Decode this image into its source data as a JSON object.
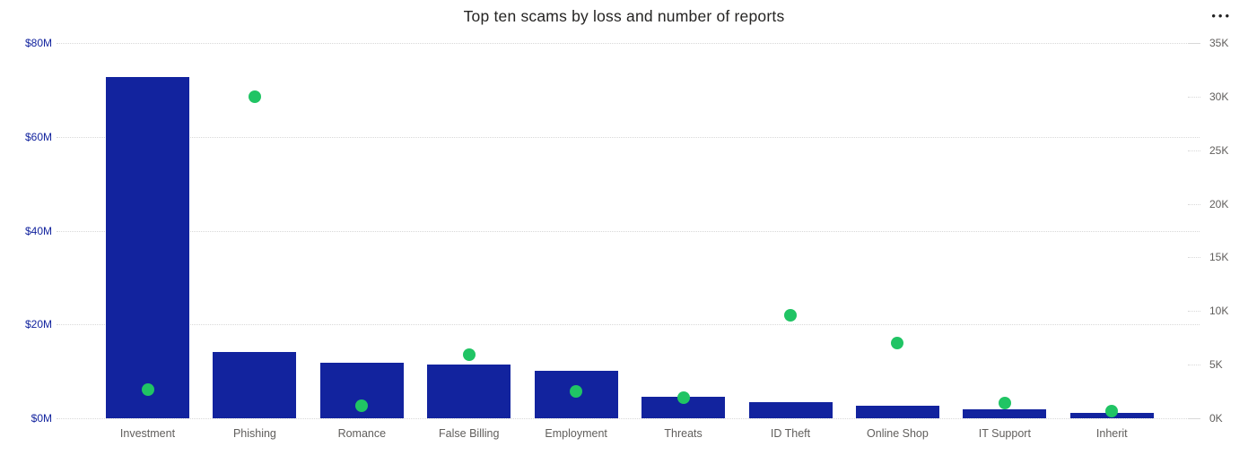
{
  "header": {
    "title": "Top ten scams by loss and number of reports",
    "more_options_glyph": "•••"
  },
  "colors": {
    "bar_blue": "#12239E",
    "dot_green": "#20C464",
    "left_axis_text": "#12239E",
    "right_axis_text": "#605E5C",
    "category_text": "#605E5C",
    "title_text": "#252423",
    "gridline": "#d8d8d8"
  },
  "chart_data": {
    "type": "bar",
    "subtype": "combo-bar-and-scatter-dual-axis",
    "title": "Top ten scams by loss and number of reports",
    "categories": [
      "Investment",
      "Phishing",
      "Romance",
      "False Billing",
      "Employment",
      "Threats",
      "ID Theft",
      "Online Shop",
      "IT Support",
      "Inherit"
    ],
    "series": [
      {
        "name": "Loss",
        "type": "bar",
        "axis": "left",
        "unit": "$M",
        "color": "#12239E",
        "values": [
          72.8,
          14.1,
          11.8,
          11.5,
          10.1,
          4.5,
          3.4,
          2.6,
          2.0,
          1.2
        ]
      },
      {
        "name": "Number of reports",
        "type": "scatter",
        "axis": "right",
        "unit": "K",
        "color": "#20C464",
        "values": [
          2.7,
          30.0,
          1.2,
          5.9,
          2.5,
          1.9,
          9.6,
          7.0,
          1.4,
          0.7
        ]
      }
    ],
    "left_axis": {
      "tick_labels": [
        "$0M",
        "$20M",
        "$40M",
        "$60M",
        "$80M"
      ],
      "tick_values": [
        0,
        20,
        40,
        60,
        80
      ],
      "range": [
        0,
        80
      ]
    },
    "right_axis": {
      "tick_labels": [
        "0K",
        "5K",
        "10K",
        "15K",
        "20K",
        "25K",
        "30K",
        "35K"
      ],
      "tick_values": [
        0,
        5,
        10,
        15,
        20,
        25,
        30,
        35
      ],
      "range": [
        0,
        35
      ]
    },
    "grid": "horizontal dotted gridlines at left-axis ticks",
    "legend": "none",
    "xlabel": "",
    "ylabel_left": "",
    "ylabel_right": ""
  }
}
